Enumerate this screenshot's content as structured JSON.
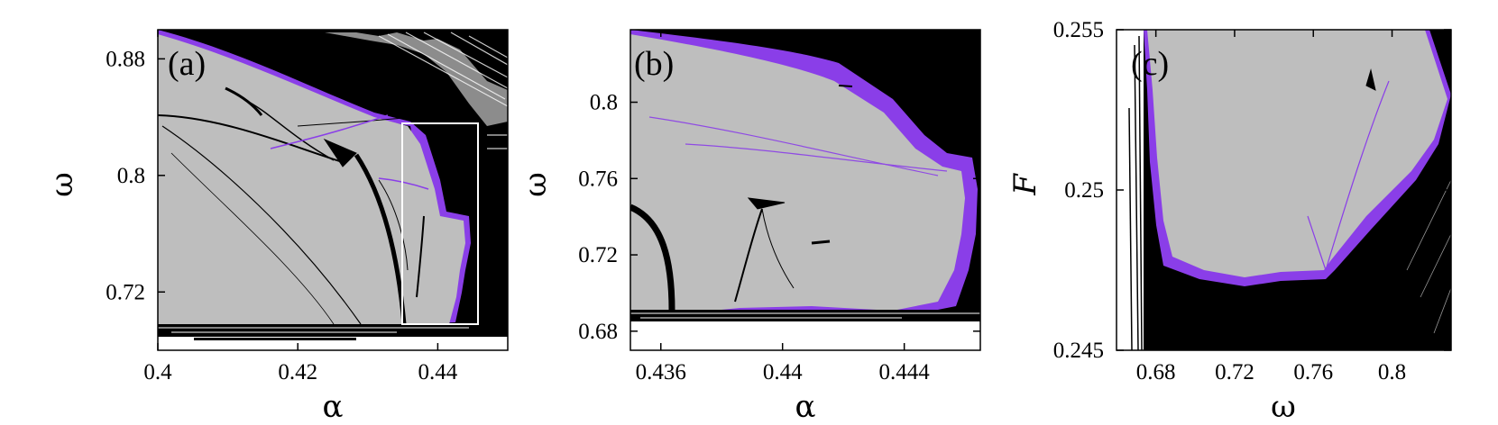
{
  "figure": {
    "colors": {
      "background": "#ffffff",
      "chaotic_region": "#000000",
      "quasiperiodic_region": "#bebebe",
      "boundary_region": "#8a3ee8",
      "zoom_box": "#ffffff"
    }
  },
  "chart_data": [
    {
      "panel": "(a)",
      "type": "heatmap",
      "xlabel": "α",
      "ylabel": "ω",
      "xlim": [
        0.4,
        0.45
      ],
      "ylim": [
        0.68,
        0.9
      ],
      "xticks": [
        0.4,
        0.42,
        0.44
      ],
      "xtick_labels": [
        "0.4",
        "0.42",
        "0.44"
      ],
      "yticks": [
        0.72,
        0.8,
        0.88
      ],
      "ytick_labels": [
        "0.72",
        "0.8",
        "0.88"
      ],
      "grid": false,
      "zoom_box": {
        "alpha": [
          0.435,
          0.4455
        ],
        "omega": [
          0.686,
          0.838
        ]
      }
    },
    {
      "panel": "(b)",
      "type": "heatmap",
      "xlabel": "α",
      "ylabel": "ω",
      "xlim": [
        0.435,
        0.4465
      ],
      "ylim": [
        0.67,
        0.838
      ],
      "xticks": [
        0.436,
        0.44,
        0.444
      ],
      "xtick_labels": [
        "0.436",
        "0.44",
        "0.444"
      ],
      "yticks": [
        0.68,
        0.72,
        0.76,
        0.8
      ],
      "ytick_labels": [
        "0.68",
        "0.72",
        "0.76",
        "0.8"
      ],
      "grid": false
    },
    {
      "panel": "(c)",
      "type": "heatmap",
      "xlabel": "ω",
      "ylabel": "F",
      "xlim": [
        0.66,
        0.83
      ],
      "ylim": [
        0.245,
        0.255
      ],
      "xticks": [
        0.68,
        0.72,
        0.76,
        0.8
      ],
      "xtick_labels": [
        "0.68",
        "0.72",
        "0.76",
        "0.8"
      ],
      "yticks": [
        0.245,
        0.25,
        0.255
      ],
      "ytick_labels": [
        "0.245",
        "0.25",
        "0.255"
      ],
      "grid": false
    }
  ]
}
